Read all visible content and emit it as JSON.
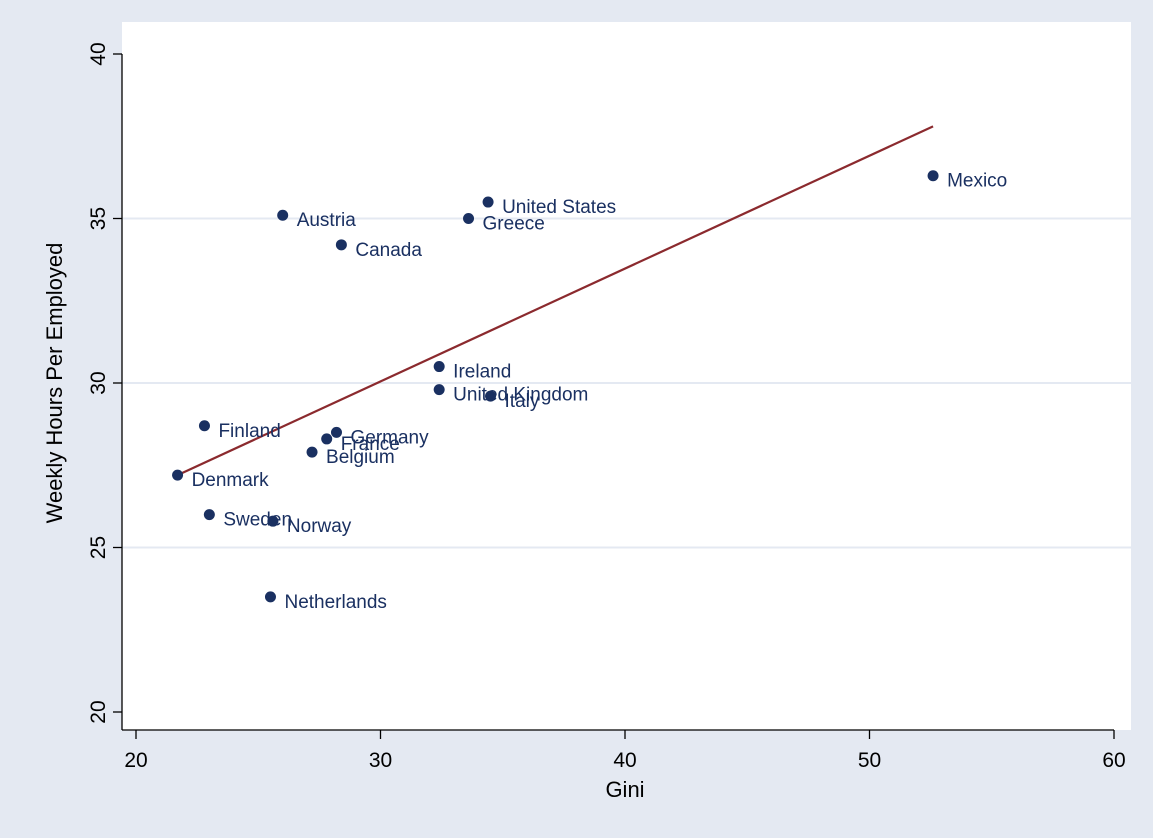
{
  "colors": {
    "outer_background": "#e4e9f2",
    "plot_background": "#ffffff",
    "gridline": "#e4e9f2",
    "marker": "#1a3061",
    "label_text": "#1a3061",
    "fit_line": "#8b2a2e",
    "axis": "#000000"
  },
  "chart_data": {
    "type": "scatter",
    "title": "",
    "xlabel": "Gini",
    "ylabel": "Weekly Hours Per Employed",
    "xlim": [
      20,
      60
    ],
    "ylim": [
      20,
      40
    ],
    "xticks": [
      20,
      30,
      40,
      50,
      60
    ],
    "yticks": [
      20,
      25,
      30,
      35,
      40
    ],
    "grid": "horizontal",
    "points": [
      {
        "label": "Austria",
        "x": 26.0,
        "y": 35.1
      },
      {
        "label": "United States",
        "x": 34.4,
        "y": 35.5
      },
      {
        "label": "Greece",
        "x": 33.6,
        "y": 35.0
      },
      {
        "label": "Canada",
        "x": 28.4,
        "y": 34.2
      },
      {
        "label": "Mexico",
        "x": 52.6,
        "y": 36.3
      },
      {
        "label": "Ireland",
        "x": 32.4,
        "y": 30.5
      },
      {
        "label": "United Kingdom",
        "x": 32.4,
        "y": 29.8
      },
      {
        "label": "Italy",
        "x": 34.5,
        "y": 29.6
      },
      {
        "label": "Finland",
        "x": 22.8,
        "y": 28.7
      },
      {
        "label": "Germany",
        "x": 28.2,
        "y": 28.5
      },
      {
        "label": "France",
        "x": 27.8,
        "y": 28.3
      },
      {
        "label": "Belgium",
        "x": 27.2,
        "y": 27.9
      },
      {
        "label": "Denmark",
        "x": 21.7,
        "y": 27.2
      },
      {
        "label": "Sweden",
        "x": 23.0,
        "y": 26.0
      },
      {
        "label": "Norway",
        "x": 25.6,
        "y": 25.8
      },
      {
        "label": "Netherlands",
        "x": 25.5,
        "y": 23.5
      }
    ],
    "fit_line": {
      "x": [
        21.7,
        52.6
      ],
      "y": [
        27.2,
        37.8
      ]
    }
  }
}
